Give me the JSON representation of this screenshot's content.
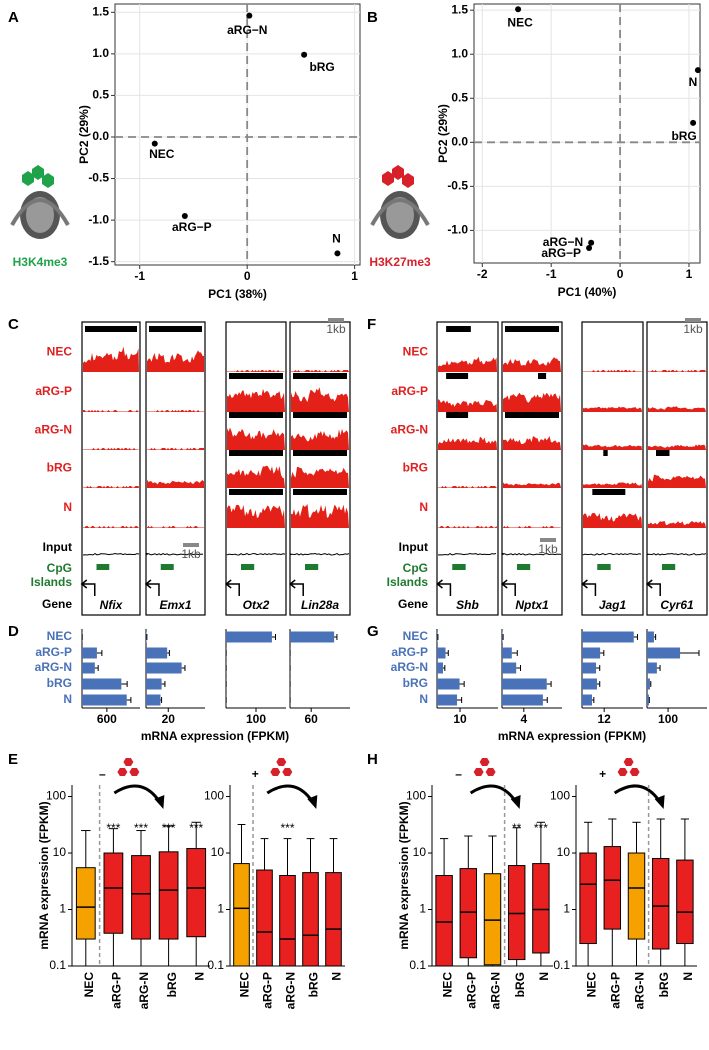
{
  "chart_data": [
    {
      "type": "scatter",
      "panel": "A",
      "mark_label": "H3K4me3",
      "mark_color": "#1fa34a",
      "color": "#000000",
      "labels": [
        "aRG−N",
        "bRG",
        "NEC",
        "aRG−P",
        "N"
      ],
      "x": [
        0.02,
        0.53,
        -0.86,
        -0.58,
        0.84
      ],
      "values": [
        1.46,
        0.99,
        -0.08,
        -0.95,
        -1.4
      ],
      "xlim": [
        -1.23,
        1.05
      ],
      "ylim": [
        -1.54,
        1.6
      ],
      "xticks": [
        -1,
        0,
        1
      ],
      "yticks": [
        -1.5,
        {
          "value": -1,
          "label": "-1.0"
        },
        -0.5,
        {
          "value": 0,
          "label": "0.0"
        },
        0.5,
        {
          "value": 1,
          "label": "1.0"
        },
        1.5
      ],
      "xlabel": "PC1 (38%)",
      "ylabel": "PC2 (29%)",
      "grid": true
    },
    {
      "type": "scatter",
      "panel": "B",
      "mark_label": "H3K27me3",
      "mark_color": "#d7212a",
      "color": "#000000",
      "labels": [
        "NEC",
        "N",
        "bRG",
        "aRG−N",
        "aRG−P"
      ],
      "x": [
        -1.48,
        1.13,
        1.06,
        -0.42,
        -0.45
      ],
      "values": [
        1.51,
        0.82,
        0.22,
        -1.14,
        -1.2
      ],
      "xlim": [
        -2.12,
        1.16
      ],
      "ylim": [
        -1.37,
        1.57
      ],
      "xticks": [
        -2,
        -1,
        0,
        1
      ],
      "yticks": [
        {
          "value": -1,
          "label": "-1.0"
        },
        -0.5,
        {
          "value": 0,
          "label": "0.0"
        },
        0.5,
        {
          "value": 1,
          "label": "1.0"
        },
        1.5
      ],
      "xlabel": "PC1 (40%)",
      "ylabel": "PC2 (29%)",
      "grid": true
    },
    {
      "type": "bar",
      "panel": "D",
      "color": "#4a72b8",
      "categories": [
        "NEC",
        "aRG-P",
        "aRG-N",
        "bRG",
        "N"
      ],
      "xlabel": "mRNA expression (FPKM)",
      "subplots": [
        {
          "xlim": [
            0,
            1400
          ],
          "xticks": [
            600
          ],
          "values": [
            5,
            360,
            310,
            950,
            1080
          ],
          "errors": [
            0,
            120,
            80,
            140,
            100
          ]
        },
        {
          "xlim": [
            0,
            53
          ],
          "xticks": [
            20
          ],
          "values": [
            0.5,
            19,
            32,
            14,
            13
          ],
          "errors": [
            0.3,
            2,
            3,
            3,
            1
          ]
        },
        {
          "xlim": [
            0,
            200
          ],
          "xticks": [
            100
          ],
          "values": [
            153,
            0.5,
            0.5,
            0.5,
            0.5
          ],
          "errors": [
            12,
            0,
            0,
            0,
            0
          ]
        },
        {
          "xlim": [
            0,
            170
          ],
          "xticks": [
            60
          ],
          "values": [
            125,
            0.3,
            0.3,
            0.3,
            0.3
          ],
          "errors": [
            8,
            0,
            0,
            0,
            0
          ]
        }
      ]
    },
    {
      "type": "bar",
      "panel": "G",
      "color": "#4a72b8",
      "categories": [
        "NEC",
        "aRG-P",
        "aRG-N",
        "bRG",
        "N"
      ],
      "xlabel": "mRNA expression (FPKM)",
      "subplots": [
        {
          "xlim": [
            0,
            26.5
          ],
          "xticks": [
            10
          ],
          "values": [
            0.3,
            3.7,
            2.6,
            9.8,
            8.7
          ],
          "errors": [
            0.1,
            1.2,
            0.8,
            2,
            2
          ]
        },
        {
          "xlim": [
            0,
            11
          ],
          "xticks": [
            4
          ],
          "values": [
            0.1,
            1.8,
            2.6,
            8.2,
            7.5
          ],
          "errors": [
            0.1,
            1,
            0.8,
            0.8,
            0.8
          ]
        },
        {
          "xlim": [
            0,
            33
          ],
          "xticks": [
            12
          ],
          "values": [
            28,
            9.8,
            7.6,
            8.1,
            5.4
          ],
          "errors": [
            2,
            2,
            2,
            1.5,
            1
          ]
        },
        {
          "xlim": [
            0,
            285
          ],
          "xticks": [
            100
          ],
          "values": [
            33,
            157,
            47,
            14,
            9
          ],
          "errors": [
            8,
            90,
            15,
            4,
            2
          ]
        }
      ]
    },
    {
      "type": "box",
      "panel": "E",
      "ylabel": "mRNA expression (FPKM)",
      "log_y": true,
      "ylim": [
        0.1,
        160
      ],
      "yticks": [
        0.1,
        1,
        10,
        100
      ],
      "subplots": [
        {
          "sign": "–",
          "categories": [
            "NEC",
            "aRG-P",
            "aRG-N",
            "bRG",
            "N"
          ],
          "low": [
            0.1,
            0.1,
            0.1,
            0.1,
            0.1
          ],
          "q1": [
            0.3,
            0.38,
            0.3,
            0.3,
            0.33
          ],
          "median": [
            1.1,
            2.4,
            1.9,
            2.2,
            2.4
          ],
          "q3": [
            5.5,
            10,
            9,
            10.5,
            12
          ],
          "high": [
            25,
            27,
            25,
            30,
            35
          ],
          "colors": [
            "#f5a200",
            "#e8201f",
            "#e8201f",
            "#e8201f",
            "#e8201f"
          ],
          "annotations": [
            null,
            "***",
            "***",
            "***",
            "***"
          ]
        },
        {
          "sign": "+",
          "categories": [
            "NEC",
            "aRG-P",
            "aRG-N",
            "bRG",
            "N"
          ],
          "low": [
            0.1,
            0.1,
            0.1,
            0.1,
            0.1
          ],
          "q1": [
            0.1,
            0.1,
            0.1,
            0.1,
            0.1
          ],
          "median": [
            1.05,
            0.4,
            0.3,
            0.35,
            0.45
          ],
          "q3": [
            6.5,
            5,
            4,
            4.5,
            4.5
          ],
          "high": [
            32,
            18,
            18,
            18,
            18
          ],
          "colors": [
            "#f5a200",
            "#e8201f",
            "#e8201f",
            "#e8201f",
            "#e8201f"
          ],
          "annotations": [
            null,
            null,
            "***",
            null,
            null
          ]
        }
      ]
    },
    {
      "type": "box",
      "panel": "H",
      "ylabel": "mRNA expression (FPKM)",
      "log_y": true,
      "ylim": [
        0.1,
        160
      ],
      "yticks": [
        0.1,
        1,
        10,
        100
      ],
      "subplots": [
        {
          "sign": "–",
          "categories": [
            "NEC",
            "aRG-P",
            "aRG-N",
            "bRG",
            "N"
          ],
          "low": [
            0.1,
            0.1,
            0.1,
            0.1,
            0.1
          ],
          "q1": [
            0.1,
            0.14,
            0.105,
            0.13,
            0.17
          ],
          "median": [
            0.6,
            0.9,
            0.65,
            0.85,
            1.0
          ],
          "q3": [
            4,
            5.3,
            4.3,
            6,
            6.5
          ],
          "high": [
            18,
            20,
            20,
            28,
            35
          ],
          "colors": [
            "#e8201f",
            "#e8201f",
            "#f5a200",
            "#e8201f",
            "#e8201f"
          ],
          "annotations": [
            null,
            null,
            null,
            "**",
            "***"
          ]
        },
        {
          "sign": "+",
          "categories": [
            "NEC",
            "aRG-P",
            "aRG-N",
            "bRG",
            "N"
          ],
          "low": [
            0.1,
            0.1,
            0.1,
            0.1,
            0.1
          ],
          "q1": [
            0.25,
            0.45,
            0.3,
            0.2,
            0.25
          ],
          "median": [
            2.8,
            3.3,
            2.4,
            1.15,
            0.9
          ],
          "q3": [
            10,
            13,
            10,
            8,
            7.5
          ],
          "high": [
            35,
            40,
            35,
            40,
            40
          ],
          "colors": [
            "#e8201f",
            "#e8201f",
            "#f5a200",
            "#e8201f",
            "#e8201f"
          ],
          "annotations": [
            null,
            null,
            null,
            null,
            null
          ]
        }
      ]
    }
  ],
  "tracks": [
    {
      "panel": "C",
      "rows": [
        "NEC",
        "aRG-P",
        "aRG-N",
        "bRG",
        "N"
      ],
      "input": "Input",
      "cpg": [
        "CpG",
        "Islands"
      ],
      "gene_label": "Gene",
      "genes": [
        "Nfix",
        "Emx1",
        "Otx2",
        "Lin28a"
      ],
      "scale_labels": [
        "1kb",
        "1kb"
      ]
    },
    {
      "panel": "F",
      "rows": [
        "NEC",
        "aRG-P",
        "aRG-N",
        "bRG",
        "N"
      ],
      "input": "Input",
      "cpg": [
        "CpG",
        "Islands"
      ],
      "gene_label": "Gene",
      "genes": [
        "Shb",
        "Nptx1",
        "Jag1",
        "Cyr61"
      ],
      "scale_labels": [
        "1kb",
        "1kb"
      ]
    }
  ]
}
